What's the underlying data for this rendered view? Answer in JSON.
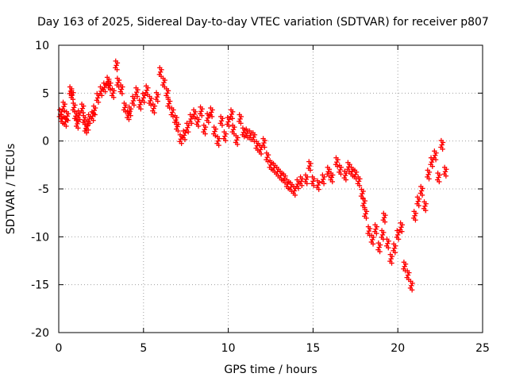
{
  "chart_data": {
    "type": "scatter",
    "title": "Day 163 of 2025, Sidereal Day-to-day VTEC variation (SDTVAR) for receiver p807",
    "xlabel": "GPS time / hours",
    "ylabel": "SDTVAR / TECUs",
    "xlim": [
      0,
      25
    ],
    "ylim": [
      -20,
      10
    ],
    "xticks": [
      0,
      5,
      10,
      15,
      20,
      25
    ],
    "xtick_labels": [
      "0",
      "5",
      "10",
      "15",
      "20",
      "25"
    ],
    "yticks": [
      10,
      5,
      0,
      -5,
      -10,
      -15,
      -20
    ],
    "ytick_labels": [
      "10",
      "5",
      "0",
      "-5",
      "-10",
      "-15",
      "-20"
    ],
    "grid": true,
    "marker": "+",
    "color": "#ff0000",
    "series": [
      {
        "name": "SDTVAR",
        "points": [
          [
            0.1,
            2.8
          ],
          [
            0.2,
            2.3
          ],
          [
            0.3,
            3.6
          ],
          [
            0.4,
            2.0
          ],
          [
            0.5,
            2.6
          ],
          [
            0.7,
            5.2
          ],
          [
            0.8,
            4.8
          ],
          [
            0.9,
            3.5
          ],
          [
            1.0,
            2.6
          ],
          [
            1.1,
            1.8
          ],
          [
            1.2,
            2.7
          ],
          [
            1.4,
            3.4
          ],
          [
            1.5,
            2.2
          ],
          [
            1.6,
            1.3
          ],
          [
            1.7,
            1.6
          ],
          [
            1.8,
            2.3
          ],
          [
            2.0,
            2.6
          ],
          [
            2.1,
            3.2
          ],
          [
            2.3,
            4.5
          ],
          [
            2.5,
            5.2
          ],
          [
            2.7,
            5.6
          ],
          [
            2.9,
            6.2
          ],
          [
            3.0,
            5.8
          ],
          [
            3.2,
            5.0
          ],
          [
            3.4,
            7.9
          ],
          [
            3.5,
            6.1
          ],
          [
            3.7,
            5.4
          ],
          [
            3.9,
            3.5
          ],
          [
            4.1,
            2.7
          ],
          [
            4.2,
            3.1
          ],
          [
            4.4,
            4.2
          ],
          [
            4.6,
            5.1
          ],
          [
            4.8,
            3.8
          ],
          [
            5.0,
            4.5
          ],
          [
            5.2,
            5.3
          ],
          [
            5.4,
            4.2
          ],
          [
            5.6,
            3.4
          ],
          [
            5.8,
            4.6
          ],
          [
            6.0,
            7.2
          ],
          [
            6.2,
            6.1
          ],
          [
            6.4,
            5.0
          ],
          [
            6.5,
            3.9
          ],
          [
            6.7,
            3.0
          ],
          [
            6.9,
            2.2
          ],
          [
            7.0,
            1.5
          ],
          [
            7.2,
            0.2
          ],
          [
            7.4,
            0.6
          ],
          [
            7.6,
            1.4
          ],
          [
            7.8,
            2.3
          ],
          [
            8.0,
            2.8
          ],
          [
            8.2,
            2.0
          ],
          [
            8.4,
            3.1
          ],
          [
            8.6,
            1.2
          ],
          [
            8.8,
            2.4
          ],
          [
            9.0,
            3.0
          ],
          [
            9.2,
            1.0
          ],
          [
            9.4,
            0.0
          ],
          [
            9.6,
            2.1
          ],
          [
            9.8,
            0.5
          ],
          [
            10.0,
            2.0
          ],
          [
            10.2,
            2.8
          ],
          [
            10.3,
            1.2
          ],
          [
            10.5,
            0.1
          ],
          [
            10.7,
            2.3
          ],
          [
            10.9,
            0.9
          ],
          [
            11.1,
            0.8
          ],
          [
            11.3,
            0.6
          ],
          [
            11.5,
            0.4
          ],
          [
            11.7,
            -0.5
          ],
          [
            11.9,
            -0.9
          ],
          [
            12.1,
            -0.2
          ],
          [
            12.3,
            -1.7
          ],
          [
            12.5,
            -2.5
          ],
          [
            12.7,
            -2.8
          ],
          [
            12.9,
            -3.2
          ],
          [
            13.1,
            -3.6
          ],
          [
            13.3,
            -3.9
          ],
          [
            13.5,
            -4.5
          ],
          [
            13.7,
            -4.8
          ],
          [
            13.9,
            -5.2
          ],
          [
            14.1,
            -4.5
          ],
          [
            14.3,
            -4.2
          ],
          [
            14.6,
            -4.0
          ],
          [
            14.8,
            -2.6
          ],
          [
            15.0,
            -4.2
          ],
          [
            15.3,
            -4.6
          ],
          [
            15.6,
            -4.0
          ],
          [
            15.9,
            -3.2
          ],
          [
            16.1,
            -3.8
          ],
          [
            16.4,
            -2.2
          ],
          [
            16.6,
            -3.0
          ],
          [
            16.9,
            -3.6
          ],
          [
            17.1,
            -2.7
          ],
          [
            17.3,
            -3.2
          ],
          [
            17.5,
            -3.5
          ],
          [
            17.7,
            -4.2
          ],
          [
            17.9,
            -5.5
          ],
          [
            18.0,
            -6.5
          ],
          [
            18.1,
            -7.6
          ],
          [
            18.3,
            -9.4
          ],
          [
            18.5,
            -10.3
          ],
          [
            18.7,
            -9.2
          ],
          [
            18.9,
            -11.1
          ],
          [
            19.1,
            -9.8
          ],
          [
            19.2,
            -8.0
          ],
          [
            19.4,
            -10.7
          ],
          [
            19.6,
            -12.3
          ],
          [
            19.8,
            -11.2
          ],
          [
            20.0,
            -9.8
          ],
          [
            20.2,
            -9.0
          ],
          [
            20.4,
            -13.1
          ],
          [
            20.6,
            -14.0
          ],
          [
            20.8,
            -15.1
          ],
          [
            21.0,
            -7.8
          ],
          [
            21.2,
            -6.3
          ],
          [
            21.4,
            -5.2
          ],
          [
            21.6,
            -6.8
          ],
          [
            21.8,
            -3.5
          ],
          [
            22.0,
            -2.2
          ],
          [
            22.2,
            -1.5
          ],
          [
            22.4,
            -3.8
          ],
          [
            22.6,
            -0.4
          ],
          [
            22.8,
            -3.2
          ]
        ]
      }
    ]
  }
}
